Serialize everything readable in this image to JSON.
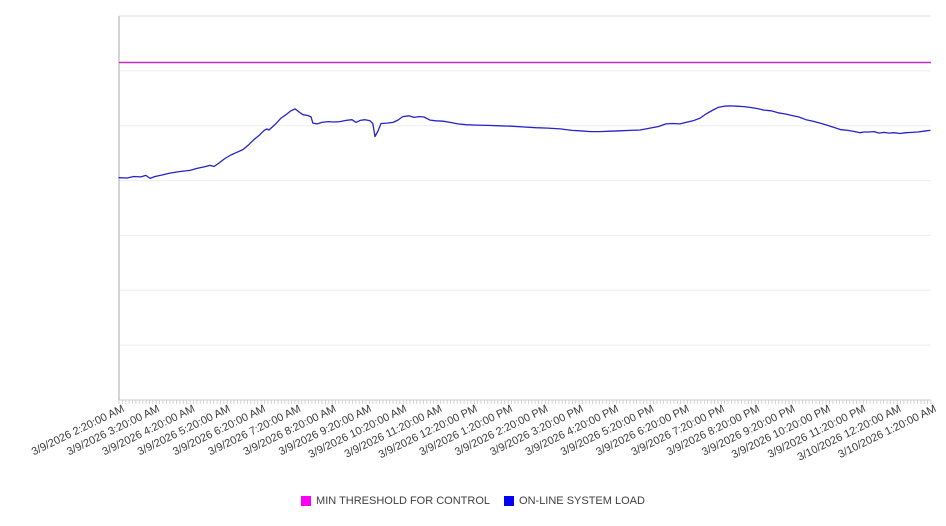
{
  "chart_data": {
    "type": "line",
    "title": "",
    "xlabel": "",
    "ylabel": "",
    "y_scale_note": "no y-axis tick labels visible; values normalized 0-100 of plot height",
    "ylim": [
      0,
      100
    ],
    "y_axis": {
      "labels_visible": false,
      "gridline_intervals": 7
    },
    "grid": "horizontal-only",
    "legend_position": "bottom-center",
    "x_minor_tick_count": 240,
    "x_tick_labels": [
      "3/9/2026 2:20:00 AM",
      "3/9/2026 3:20:00 AM",
      "3/9/2026 4:20:00 AM",
      "3/9/2026 5:20:00 AM",
      "3/9/2026 6:20:00 AM",
      "3/9/2026 7:20:00 AM",
      "3/9/2026 8:20:00 AM",
      "3/9/2026 9:20:00 AM",
      "3/9/2026 10:20:00 AM",
      "3/9/2026 11:20:00 AM",
      "3/9/2026 12:20:00 PM",
      "3/9/2026 1:20:00 PM",
      "3/9/2026 2:20:00 PM",
      "3/9/2026 3:20:00 PM",
      "3/9/2026 4:20:00 PM",
      "3/9/2026 5:20:00 PM",
      "3/9/2026 6:20:00 PM",
      "3/9/2026 7:20:00 PM",
      "3/9/2026 8:20:00 PM",
      "3/9/2026 9:20:00 PM",
      "3/9/2026 10:20:00 PM",
      "3/9/2026 11:20:00 PM",
      "3/10/2026 12:20:00 AM",
      "3/10/2026 1:20:00 AM"
    ],
    "series": [
      {
        "name": "MIN THRESHOLD FOR CONTROL",
        "type": "constant-line",
        "color": "#C82AC6",
        "swatch_color": "#FA00FA",
        "value": 87.9
      },
      {
        "name": "ON-LINE SYSTEM LOAD",
        "type": "line",
        "color": "#2323CB",
        "swatch_color": "#0303F0",
        "points_format": "[hours since 2:20 AM, normalized value 0-100]",
        "points": [
          [
            0,
            57.9
          ],
          [
            0.23,
            57.8
          ],
          [
            0.42,
            58.2
          ],
          [
            0.62,
            58.1
          ],
          [
            0.76,
            58.5
          ],
          [
            0.88,
            57.7
          ],
          [
            1.02,
            58.2
          ],
          [
            1.22,
            58.6
          ],
          [
            1.44,
            59.1
          ],
          [
            1.73,
            59.5
          ],
          [
            2.01,
            59.8
          ],
          [
            2.21,
            60.3
          ],
          [
            2.41,
            60.7
          ],
          [
            2.58,
            61.1
          ],
          [
            2.69,
            60.8
          ],
          [
            2.83,
            61.7
          ],
          [
            3.0,
            62.9
          ],
          [
            3.17,
            63.8
          ],
          [
            3.34,
            64.5
          ],
          [
            3.51,
            65.2
          ],
          [
            3.68,
            66.5
          ],
          [
            3.82,
            67.8
          ],
          [
            3.97,
            68.9
          ],
          [
            4.11,
            70.2
          ],
          [
            4.19,
            70.6
          ],
          [
            4.25,
            70.3
          ],
          [
            4.33,
            71.0
          ],
          [
            4.45,
            72.0
          ],
          [
            4.59,
            73.4
          ],
          [
            4.73,
            74.3
          ],
          [
            4.87,
            75.3
          ],
          [
            4.99,
            75.8
          ],
          [
            5.1,
            75.0
          ],
          [
            5.21,
            74.3
          ],
          [
            5.35,
            74.1
          ],
          [
            5.44,
            73.7
          ],
          [
            5.49,
            72.1
          ],
          [
            5.61,
            71.9
          ],
          [
            5.75,
            72.3
          ],
          [
            5.92,
            72.5
          ],
          [
            6.09,
            72.4
          ],
          [
            6.26,
            72.5
          ],
          [
            6.43,
            72.8
          ],
          [
            6.6,
            73.0
          ],
          [
            6.71,
            72.3
          ],
          [
            6.83,
            72.8
          ],
          [
            6.97,
            73.0
          ],
          [
            7.11,
            72.7
          ],
          [
            7.19,
            72.0
          ],
          [
            7.25,
            68.6
          ],
          [
            7.34,
            70.1
          ],
          [
            7.42,
            72.0
          ],
          [
            7.59,
            72.1
          ],
          [
            7.76,
            72.3
          ],
          [
            7.9,
            72.9
          ],
          [
            8.04,
            73.8
          ],
          [
            8.21,
            74.0
          ],
          [
            8.36,
            73.6
          ],
          [
            8.5,
            73.8
          ],
          [
            8.64,
            73.7
          ],
          [
            8.81,
            72.9
          ],
          [
            8.98,
            72.7
          ],
          [
            9.18,
            72.6
          ],
          [
            9.38,
            72.3
          ],
          [
            9.6,
            71.9
          ],
          [
            9.83,
            71.7
          ],
          [
            10.11,
            71.6
          ],
          [
            10.45,
            71.5
          ],
          [
            10.79,
            71.4
          ],
          [
            11.13,
            71.3
          ],
          [
            11.47,
            71.1
          ],
          [
            11.81,
            70.9
          ],
          [
            12.15,
            70.8
          ],
          [
            12.49,
            70.6
          ],
          [
            12.83,
            70.2
          ],
          [
            13.06,
            70.1
          ],
          [
            13.34,
            69.9
          ],
          [
            13.62,
            69.9
          ],
          [
            13.91,
            70.0
          ],
          [
            14.19,
            70.1
          ],
          [
            14.47,
            70.2
          ],
          [
            14.76,
            70.3
          ],
          [
            15.04,
            70.8
          ],
          [
            15.27,
            71.2
          ],
          [
            15.49,
            71.9
          ],
          [
            15.69,
            72.0
          ],
          [
            15.89,
            71.9
          ],
          [
            16.06,
            72.3
          ],
          [
            16.26,
            72.7
          ],
          [
            16.46,
            73.4
          ],
          [
            16.63,
            74.5
          ],
          [
            16.8,
            75.4
          ],
          [
            16.97,
            76.2
          ],
          [
            17.14,
            76.5
          ],
          [
            17.31,
            76.6
          ],
          [
            17.51,
            76.5
          ],
          [
            17.7,
            76.4
          ],
          [
            17.87,
            76.2
          ],
          [
            18.07,
            75.9
          ],
          [
            18.27,
            75.5
          ],
          [
            18.47,
            75.3
          ],
          [
            18.67,
            74.8
          ],
          [
            18.86,
            74.5
          ],
          [
            19.06,
            74.1
          ],
          [
            19.26,
            73.7
          ],
          [
            19.46,
            73.0
          ],
          [
            19.66,
            72.6
          ],
          [
            19.86,
            72.1
          ],
          [
            20.05,
            71.6
          ],
          [
            20.25,
            71.0
          ],
          [
            20.45,
            70.4
          ],
          [
            20.65,
            70.2
          ],
          [
            20.85,
            69.9
          ],
          [
            20.99,
            69.6
          ],
          [
            21.1,
            69.8
          ],
          [
            21.24,
            69.8
          ],
          [
            21.39,
            69.9
          ],
          [
            21.53,
            69.5
          ],
          [
            21.67,
            69.7
          ],
          [
            21.81,
            69.5
          ],
          [
            21.95,
            69.6
          ],
          [
            22.12,
            69.4
          ],
          [
            22.29,
            69.6
          ],
          [
            22.46,
            69.7
          ],
          [
            22.63,
            69.8
          ],
          [
            22.8,
            70.0
          ],
          [
            22.97,
            70.2
          ]
        ]
      }
    ],
    "axis_colors": {
      "y_axis_line": "#aaaaaa",
      "gridline": "#ededed",
      "plot_top_border": "#e2e2e2",
      "x_axis_line": "#cccccc",
      "minor_ticks": "#c9c9c9",
      "tick_label_text": "#3b3b3b"
    }
  }
}
